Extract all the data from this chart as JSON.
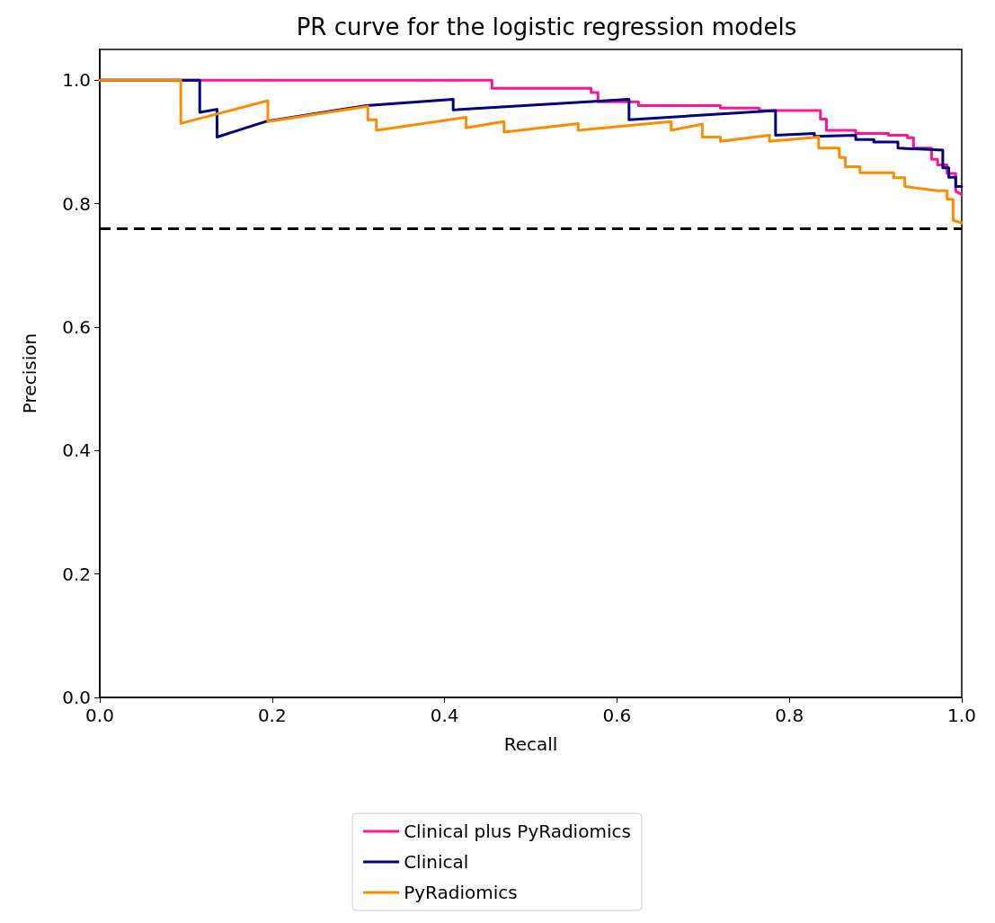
{
  "chart_data": {
    "type": "line",
    "title": "PR curve for the logistic regression models",
    "xlabel": "Recall",
    "ylabel": "Precision",
    "xlim": [
      0,
      1
    ],
    "ylim": [
      0,
      1.05
    ],
    "xticks": [
      {
        "value": 0,
        "label": "0.0"
      },
      0.2,
      0.4,
      0.6,
      0.8,
      {
        "value": 1,
        "label": "1.0"
      }
    ],
    "yticks": [
      {
        "value": 0,
        "label": "0.0"
      },
      0.2,
      0.4,
      0.6,
      0.8,
      {
        "value": 1,
        "label": "1.0"
      }
    ],
    "grid": false,
    "legend": "bottom",
    "marker": "none",
    "line_style": "solid",
    "ref_lines": [
      {
        "axis": "y",
        "value": 0.76,
        "color": "#000000",
        "line_style": "dashed"
      }
    ],
    "series": [
      {
        "name": "Clinical plus PyRadiomics",
        "color": "#ff1493",
        "x": [
          0,
          0.455,
          0.455,
          0.57,
          0.57,
          0.578,
          0.578,
          0.625,
          0.625,
          0.72,
          0.72,
          0.765,
          0.765,
          0.836,
          0.836,
          0.843,
          0.843,
          0.877,
          0.877,
          0.915,
          0.915,
          0.937,
          0.937,
          0.944,
          0.944,
          0.965,
          0.965,
          0.972,
          0.972,
          0.983,
          0.983,
          0.993,
          0.993,
          1.0
        ],
        "values": [
          1.0,
          1.0,
          0.987,
          0.987,
          0.98,
          0.98,
          0.965,
          0.965,
          0.959,
          0.959,
          0.955,
          0.955,
          0.951,
          0.951,
          0.937,
          0.937,
          0.919,
          0.919,
          0.914,
          0.914,
          0.911,
          0.911,
          0.907,
          0.907,
          0.89,
          0.89,
          0.872,
          0.872,
          0.863,
          0.863,
          0.849,
          0.849,
          0.82,
          0.815
        ]
      },
      {
        "name": "Clinical",
        "color": "#000080",
        "x": [
          0,
          0.116,
          0.116,
          0.136,
          0.136,
          0.192,
          0.309,
          0.41,
          0.41,
          0.614,
          0.614,
          0.784,
          0.784,
          0.829,
          0.829,
          0.877,
          0.877,
          0.898,
          0.898,
          0.926,
          0.926,
          0.978,
          0.978,
          0.985,
          0.985,
          0.993,
          0.993,
          1.0
        ],
        "values": [
          1.0,
          1.0,
          0.948,
          0.953,
          0.908,
          0.933,
          0.959,
          0.969,
          0.952,
          0.969,
          0.936,
          0.951,
          0.911,
          0.914,
          0.909,
          0.911,
          0.904,
          0.904,
          0.9,
          0.9,
          0.89,
          0.887,
          0.858,
          0.858,
          0.843,
          0.843,
          0.828,
          0.828
        ]
      },
      {
        "name": "PyRadiomics",
        "color": "#ff8c00",
        "x": [
          0,
          0.094,
          0.094,
          0.195,
          0.195,
          0.311,
          0.311,
          0.321,
          0.321,
          0.425,
          0.425,
          0.469,
          0.469,
          0.555,
          0.555,
          0.663,
          0.663,
          0.699,
          0.699,
          0.72,
          0.72,
          0.777,
          0.777,
          0.834,
          0.834,
          0.858,
          0.858,
          0.865,
          0.865,
          0.882,
          0.882,
          0.921,
          0.921,
          0.934,
          0.934,
          0.972,
          0.972,
          0.983,
          0.983,
          0.99,
          0.99,
          1.0
        ],
        "values": [
          1.0,
          1.0,
          0.93,
          0.967,
          0.933,
          0.958,
          0.936,
          0.936,
          0.919,
          0.94,
          0.923,
          0.933,
          0.916,
          0.93,
          0.919,
          0.933,
          0.919,
          0.929,
          0.908,
          0.908,
          0.901,
          0.911,
          0.901,
          0.908,
          0.89,
          0.89,
          0.875,
          0.875,
          0.86,
          0.86,
          0.85,
          0.85,
          0.842,
          0.842,
          0.828,
          0.821,
          0.821,
          0.821,
          0.807,
          0.807,
          0.773,
          0.769
        ]
      }
    ]
  }
}
